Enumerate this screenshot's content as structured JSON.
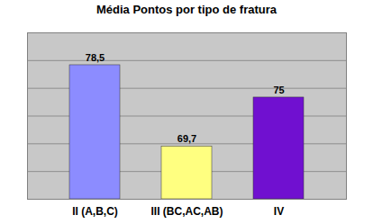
{
  "chart_data": {
    "type": "bar",
    "title": "Média Pontos por tipo de fratura",
    "categories": [
      "II (A,B,C)",
      "III (BC,AC,AB)",
      "IV"
    ],
    "values": [
      78.5,
      69.7,
      75
    ],
    "value_labels": [
      "78,5",
      "69,7",
      "75"
    ],
    "colors": [
      "#8c8cff",
      "#ffff80",
      "#7010d0"
    ],
    "ylim": [
      64,
      82
    ],
    "yticks": [
      64,
      67,
      70,
      73,
      76,
      79,
      82
    ],
    "grid": true,
    "data_labels": true,
    "tick_labels": "x"
  }
}
